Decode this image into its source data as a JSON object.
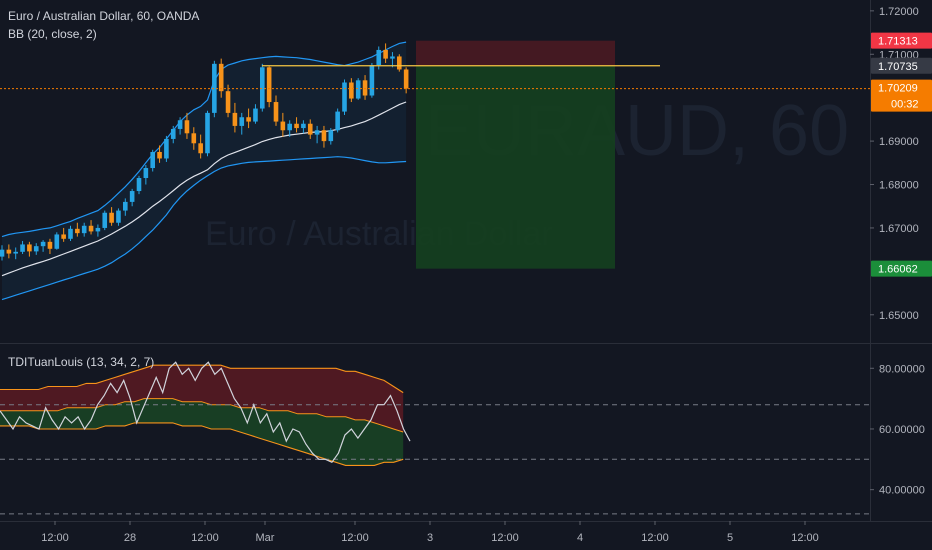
{
  "legend": {
    "title": "Euro / Australian Dollar, 60, OANDA",
    "bb": "BB (20, close, 2)",
    "tdi": "TDITuanLouis (13, 34, 2, 7)"
  },
  "watermark": {
    "symbol": "EURAUD, 60",
    "name": "Euro / Australian Dollar"
  },
  "colors": {
    "background": "#131722",
    "grid": "#1e222d",
    "up": "#26a5e4",
    "down": "#f7931a",
    "bb_band": "#2196f3",
    "bb_basis": "#e0e3eb",
    "stop_zone": "#4a1a22",
    "target_zone": "#15401f",
    "stop_tag": "#f23645",
    "target_tag": "#1b8e3a",
    "current_tag": "#f57c00",
    "entry_line": "#f5c542"
  },
  "tags": {
    "stop": "1.71313",
    "entry": "1.70735",
    "current": "1.70209",
    "countdown": "00:32",
    "target": "1.66062"
  },
  "chart_data": [
    {
      "type": "candlestick",
      "title": "Euro / Australian Dollar, 60, OANDA",
      "ylim": [
        1.6435,
        1.7225
      ],
      "y_ticks": [
        "1.72000",
        "1.71000",
        "1.69000",
        "1.68000",
        "1.67000",
        "1.65000"
      ],
      "x_ticks": [
        "12:00",
        "28",
        "12:00",
        "Mar",
        "12:00",
        "3",
        "12:00",
        "4",
        "12:00",
        "5",
        "12:00"
      ],
      "levels": {
        "stop": 1.71313,
        "entry": 1.70735,
        "current": 1.70209,
        "target": 1.66062
      },
      "ohlc": [
        [
          1.6634,
          1.666,
          1.6625,
          1.665
        ],
        [
          1.665,
          1.6662,
          1.663,
          1.6641
        ],
        [
          1.6641,
          1.6655,
          1.6628,
          1.6645
        ],
        [
          1.6645,
          1.667,
          1.664,
          1.6662
        ],
        [
          1.6662,
          1.6668,
          1.6634,
          1.6646
        ],
        [
          1.6646,
          1.6665,
          1.6638,
          1.6658
        ],
        [
          1.6658,
          1.6672,
          1.6645,
          1.6668
        ],
        [
          1.6668,
          1.6675,
          1.664,
          1.6652
        ],
        [
          1.6652,
          1.669,
          1.665,
          1.6685
        ],
        [
          1.6685,
          1.67,
          1.6668,
          1.6675
        ],
        [
          1.6675,
          1.6705,
          1.667,
          1.6698
        ],
        [
          1.6698,
          1.6712,
          1.668,
          1.6688
        ],
        [
          1.6688,
          1.6712,
          1.668,
          1.6705
        ],
        [
          1.6705,
          1.6718,
          1.6685,
          1.6692
        ],
        [
          1.6692,
          1.6708,
          1.668,
          1.67
        ],
        [
          1.67,
          1.674,
          1.6695,
          1.6735
        ],
        [
          1.6735,
          1.6748,
          1.6705,
          1.6712
        ],
        [
          1.6712,
          1.6745,
          1.6705,
          1.674
        ],
        [
          1.674,
          1.6768,
          1.6728,
          1.676
        ],
        [
          1.676,
          1.679,
          1.675,
          1.6785
        ],
        [
          1.6785,
          1.682,
          1.6778,
          1.6815
        ],
        [
          1.6815,
          1.6845,
          1.68,
          1.6838
        ],
        [
          1.6838,
          1.688,
          1.683,
          1.6875
        ],
        [
          1.6875,
          1.689,
          1.685,
          1.686
        ],
        [
          1.686,
          1.6912,
          1.6852,
          1.6905
        ],
        [
          1.6905,
          1.6935,
          1.6895,
          1.6928
        ],
        [
          1.6928,
          1.6955,
          1.6915,
          1.6948
        ],
        [
          1.6948,
          1.6965,
          1.6905,
          1.6918
        ],
        [
          1.6918,
          1.6932,
          1.688,
          1.6895
        ],
        [
          1.6895,
          1.6915,
          1.686,
          1.6872
        ],
        [
          1.6872,
          1.697,
          1.6865,
          1.6965
        ],
        [
          1.6965,
          1.7085,
          1.6955,
          1.7078
        ],
        [
          1.7078,
          1.709,
          1.7,
          1.7015
        ],
        [
          1.7015,
          1.703,
          1.6955,
          1.6965
        ],
        [
          1.6965,
          1.6988,
          1.692,
          1.6935
        ],
        [
          1.6935,
          1.6965,
          1.6915,
          1.6955
        ],
        [
          1.6955,
          1.6975,
          1.693,
          1.6945
        ],
        [
          1.6945,
          1.6985,
          1.694,
          1.6975
        ],
        [
          1.6975,
          1.7078,
          1.6968,
          1.707
        ],
        [
          1.707,
          1.7072,
          1.6978,
          1.699
        ],
        [
          1.699,
          1.7005,
          1.6935,
          1.6945
        ],
        [
          1.6945,
          1.6965,
          1.691,
          1.6925
        ],
        [
          1.6925,
          1.6948,
          1.691,
          1.694
        ],
        [
          1.694,
          1.6955,
          1.692,
          1.693
        ],
        [
          1.693,
          1.6948,
          1.6918,
          1.694
        ],
        [
          1.694,
          1.695,
          1.6905,
          1.6915
        ],
        [
          1.6915,
          1.6935,
          1.6895,
          1.6925
        ],
        [
          1.6925,
          1.6935,
          1.6885,
          1.69
        ],
        [
          1.69,
          1.693,
          1.6892,
          1.6925
        ],
        [
          1.6925,
          1.6975,
          1.692,
          1.6968
        ],
        [
          1.6968,
          1.7042,
          1.696,
          1.7035
        ],
        [
          1.7035,
          1.7045,
          1.699,
          1.6998
        ],
        [
          1.6998,
          1.7045,
          1.6995,
          1.704
        ],
        [
          1.704,
          1.7052,
          1.6995,
          1.7005
        ],
        [
          1.7005,
          1.708,
          1.7,
          1.7075
        ],
        [
          1.7075,
          1.7118,
          1.7065,
          1.711
        ],
        [
          1.711,
          1.7125,
          1.708,
          1.709
        ],
        [
          1.709,
          1.7105,
          1.707,
          1.7095
        ],
        [
          1.7095,
          1.71,
          1.706,
          1.7065
        ],
        [
          1.7065,
          1.707,
          1.701,
          1.7021
        ]
      ],
      "bb_upper": [
        1.668,
        1.6685,
        1.6688,
        1.669,
        1.6692,
        1.6695,
        1.6698,
        1.67,
        1.6705,
        1.671,
        1.6715,
        1.6722,
        1.6728,
        1.6734,
        1.674,
        1.6752,
        1.6765,
        1.678,
        1.6795,
        1.6812,
        1.683,
        1.685,
        1.687,
        1.6885,
        1.6905,
        1.6925,
        1.6945,
        1.696,
        1.6972,
        1.698,
        1.6995,
        1.704,
        1.7065,
        1.7075,
        1.708,
        1.7085,
        1.7088,
        1.709,
        1.7092,
        1.7094,
        1.7095,
        1.7094,
        1.7093,
        1.7092,
        1.709,
        1.7088,
        1.7085,
        1.7082,
        1.7079,
        1.7076,
        1.7074,
        1.7078,
        1.7082,
        1.7088,
        1.7094,
        1.7102,
        1.711,
        1.7118,
        1.7125,
        1.7128
      ],
      "bb_basis": [
        1.659,
        1.6596,
        1.6602,
        1.6608,
        1.6613,
        1.6618,
        1.6623,
        1.6628,
        1.6634,
        1.664,
        1.6646,
        1.6652,
        1.6658,
        1.6664,
        1.667,
        1.6678,
        1.6686,
        1.6695,
        1.6704,
        1.6714,
        1.6725,
        1.6737,
        1.675,
        1.6761,
        1.6773,
        1.6786,
        1.6799,
        1.681,
        1.6819,
        1.6826,
        1.6834,
        1.6848,
        1.686,
        1.6868,
        1.6874,
        1.688,
        1.6886,
        1.6892,
        1.6899,
        1.6904,
        1.6908,
        1.6911,
        1.6914,
        1.6916,
        1.6918,
        1.692,
        1.6921,
        1.6922,
        1.6924,
        1.6927,
        1.6931,
        1.6935,
        1.694,
        1.6945,
        1.6952,
        1.696,
        1.6968,
        1.6976,
        1.6984,
        1.699
      ],
      "bb_lower": [
        1.6535,
        1.654,
        1.6545,
        1.655,
        1.6555,
        1.656,
        1.6565,
        1.657,
        1.6575,
        1.658,
        1.6585,
        1.659,
        1.6595,
        1.66,
        1.6605,
        1.6612,
        1.662,
        1.663,
        1.664,
        1.6652,
        1.6665,
        1.668,
        1.6695,
        1.6712,
        1.673,
        1.6752,
        1.677,
        1.6785,
        1.6798,
        1.681,
        1.682,
        1.683,
        1.6838,
        1.6843,
        1.6846,
        1.6849,
        1.6851,
        1.6852,
        1.6853,
        1.6854,
        1.6855,
        1.6856,
        1.6857,
        1.6858,
        1.6859,
        1.686,
        1.6861,
        1.6862,
        1.6863,
        1.6864,
        1.6863,
        1.6861,
        1.6858,
        1.6855,
        1.6852,
        1.685,
        1.685,
        1.6851,
        1.6852,
        1.6853
      ]
    },
    {
      "type": "line",
      "title": "TDITuanLouis (13, 34, 2, 7)",
      "ylim": [
        30,
        88
      ],
      "y_ticks": [
        "80.00000",
        "60.00000",
        "40.00000"
      ],
      "levels": [
        68,
        50,
        32
      ],
      "rsi": [
        66,
        63,
        60,
        64,
        62,
        61,
        60,
        67,
        63,
        60,
        64,
        62,
        64,
        60,
        63,
        68,
        71,
        75,
        72,
        76,
        70,
        62,
        67,
        72,
        77,
        72,
        80,
        82,
        78,
        80,
        76,
        80,
        82,
        78,
        80,
        75,
        70,
        67,
        62,
        68,
        62,
        65,
        59,
        62,
        56,
        60,
        59,
        55,
        52,
        50,
        50,
        49,
        52,
        58,
        60,
        57,
        60,
        63,
        68,
        68,
        71,
        66,
        60,
        56
      ],
      "band_upper": [
        73,
        73,
        73,
        73,
        73,
        74,
        74,
        74,
        74,
        75,
        75,
        76,
        77,
        78,
        79,
        80,
        81,
        81,
        81,
        81,
        81,
        81,
        81,
        81,
        80,
        80,
        80,
        80,
        80,
        80,
        80,
        80,
        80,
        80,
        80,
        80,
        79,
        79,
        78,
        77,
        76,
        74,
        72
      ],
      "band_mid": [
        66,
        66,
        66,
        66,
        66,
        66,
        66,
        67,
        67,
        67,
        67,
        68,
        68,
        69,
        69,
        70,
        70,
        70,
        70,
        69,
        69,
        69,
        68,
        68,
        68,
        67,
        67,
        67,
        66,
        66,
        66,
        65,
        65,
        65,
        64,
        64,
        64,
        63,
        63,
        62,
        61,
        60,
        59
      ],
      "band_lower": [
        61,
        61,
        61,
        61,
        60,
        60,
        60,
        60,
        60,
        60,
        60,
        61,
        61,
        61,
        62,
        62,
        62,
        62,
        62,
        61,
        61,
        61,
        60,
        60,
        60,
        59,
        58,
        57,
        56,
        55,
        54,
        53,
        52,
        51,
        50,
        49,
        48,
        48,
        48,
        48,
        49,
        49,
        50
      ]
    }
  ]
}
